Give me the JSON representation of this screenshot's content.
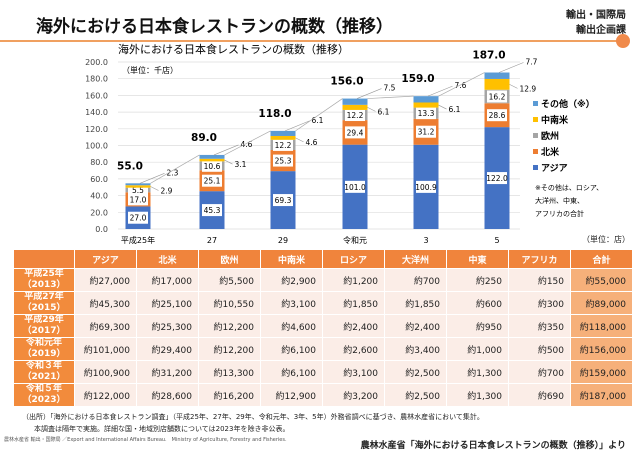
{
  "header": {
    "title": "海外における日本食レストランの概数（推移）",
    "dept_line1": "輸出・国際局",
    "dept_line2": "輸出企画課"
  },
  "chart_data": {
    "type": "bar",
    "stacked": true,
    "title": "海外における日本食レストランの概数（推移）",
    "unit_label": "（単位：千店）",
    "categories": [
      "平成25年",
      "27",
      "29",
      "令和元",
      "3",
      "5"
    ],
    "ylim": [
      0,
      200
    ],
    "yticks": [
      "0.0",
      "20.0",
      "40.0",
      "60.0",
      "80.0",
      "100.0",
      "120.0",
      "140.0",
      "160.0",
      "180.0",
      "200.0"
    ],
    "grid": true,
    "legend_position": "right",
    "series": [
      {
        "name": "アジア",
        "color": "#4472c4",
        "values": [
          27.0,
          45.3,
          69.3,
          101.0,
          100.9,
          122.0
        ]
      },
      {
        "name": "北米",
        "color": "#ed7d31",
        "values": [
          17.0,
          25.1,
          25.3,
          29.4,
          31.2,
          28.6
        ]
      },
      {
        "name": "欧州",
        "color": "#a5a5a5",
        "values": [
          5.5,
          10.6,
          12.2,
          12.2,
          13.3,
          16.2
        ]
      },
      {
        "name": "中南米",
        "color": "#ffc000",
        "values": [
          2.9,
          3.1,
          4.6,
          6.1,
          6.1,
          12.9
        ]
      },
      {
        "name": "その他（※）",
        "color": "#5b9bd5",
        "values": [
          2.3,
          4.6,
          6.1,
          7.5,
          7.6,
          7.7
        ]
      }
    ],
    "totals": [
      55.0,
      89.0,
      118.0,
      156.0,
      159.0,
      187.0
    ],
    "legend_order": [
      "その他（※）",
      "中南米",
      "欧州",
      "北米",
      "アジア"
    ],
    "note": [
      "※その他は、ロシア、",
      "大洋州、中東、",
      "アフリカの合計"
    ]
  },
  "table": {
    "unit": "（単位：店）",
    "headers": [
      "",
      "アジア",
      "北米",
      "欧州",
      "中南米",
      "ロシア",
      "大洋州",
      "中東",
      "アフリカ",
      "合計"
    ],
    "rows": [
      {
        "year": "平成25年",
        "year2": "（2013）",
        "cells": [
          "約27,000",
          "約17,000",
          "約5,500",
          "約2,900",
          "約1,200",
          "約700",
          "約250",
          "約150",
          "約55,000"
        ]
      },
      {
        "year": "平成27年",
        "year2": "（2015）",
        "cells": [
          "約45,300",
          "約25,100",
          "約10,550",
          "約3,100",
          "約1,850",
          "約1,850",
          "約600",
          "約300",
          "約89,000"
        ]
      },
      {
        "year": "平成29年",
        "year2": "（2017）",
        "cells": [
          "約69,300",
          "約25,300",
          "約12,200",
          "約4,600",
          "約2,400",
          "約2,400",
          "約950",
          "約350",
          "約118,000"
        ]
      },
      {
        "year": "令和元年",
        "year2": "（2019）",
        "cells": [
          "約101,000",
          "約29,400",
          "約12,200",
          "約6,100",
          "約2,600",
          "約3,400",
          "約1,000",
          "約500",
          "約156,000"
        ]
      },
      {
        "year": "令和３年",
        "year2": "（2021）",
        "cells": [
          "約100,900",
          "約31,200",
          "約13,300",
          "約6,100",
          "約3,100",
          "約2,500",
          "約1,300",
          "約700",
          "約159,000"
        ]
      },
      {
        "year": "令和５年",
        "year2": "（2023）",
        "cells": [
          "約122,000",
          "約28,600",
          "約16,200",
          "約12,900",
          "約3,200",
          "約2,500",
          "約1,300",
          "約690",
          "約187,000"
        ]
      }
    ]
  },
  "footer": {
    "line1": "（出所）「海外における日本食レストラン調査」（平成25年、27年、29年、令和元年、3年、5年）外務省調べに基づき、農林水産省において集計。",
    "line2": "本調査は隔年で実施。詳細な国・地域別店舗数については2023年を除き非公表。",
    "org": "農林水産省 輸出・国際局 ／Export and International Affairs Bureau.　Ministry of Agriculture, Forestry and Fisheries.",
    "source": "農林水産省「海外における日本食レストランの概数（推移）」より"
  }
}
